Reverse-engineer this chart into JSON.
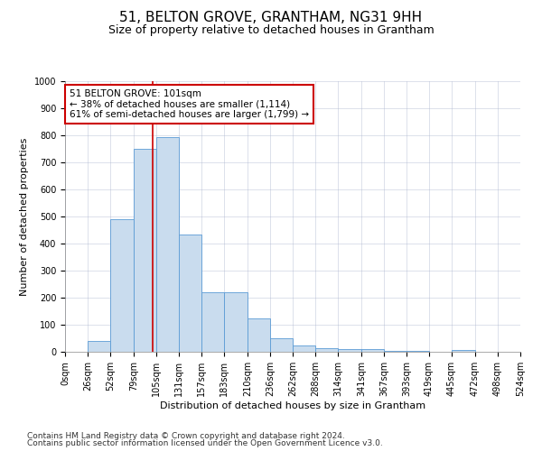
{
  "title": "51, BELTON GROVE, GRANTHAM, NG31 9HH",
  "subtitle": "Size of property relative to detached houses in Grantham",
  "xlabel": "Distribution of detached houses by size in Grantham",
  "ylabel": "Number of detached properties",
  "bin_edges": [
    0,
    26,
    52,
    79,
    105,
    131,
    157,
    183,
    210,
    236,
    262,
    288,
    314,
    341,
    367,
    393,
    419,
    445,
    472,
    498,
    524
  ],
  "bar_heights": [
    0,
    40,
    490,
    750,
    795,
    435,
    220,
    220,
    125,
    50,
    25,
    12,
    10,
    10,
    5,
    5,
    0,
    8,
    0,
    0
  ],
  "bar_facecolor": "#c9dcee",
  "bar_edgecolor": "#5b9bd5",
  "property_line_x": 101,
  "property_line_color": "#cc0000",
  "annotation_text": "51 BELTON GROVE: 101sqm\n← 38% of detached houses are smaller (1,114)\n61% of semi-detached houses are larger (1,799) →",
  "annotation_box_color": "#cc0000",
  "annotation_fontsize": 7.5,
  "ylim": [
    0,
    1000
  ],
  "yticks": [
    0,
    100,
    200,
    300,
    400,
    500,
    600,
    700,
    800,
    900,
    1000
  ],
  "grid_color": "#b0b8d0",
  "grid_alpha": 0.6,
  "footer_line1": "Contains HM Land Registry data © Crown copyright and database right 2024.",
  "footer_line2": "Contains public sector information licensed under the Open Government Licence v3.0.",
  "title_fontsize": 11,
  "subtitle_fontsize": 9,
  "axis_label_fontsize": 8,
  "tick_fontsize": 7,
  "footer_fontsize": 6.5
}
